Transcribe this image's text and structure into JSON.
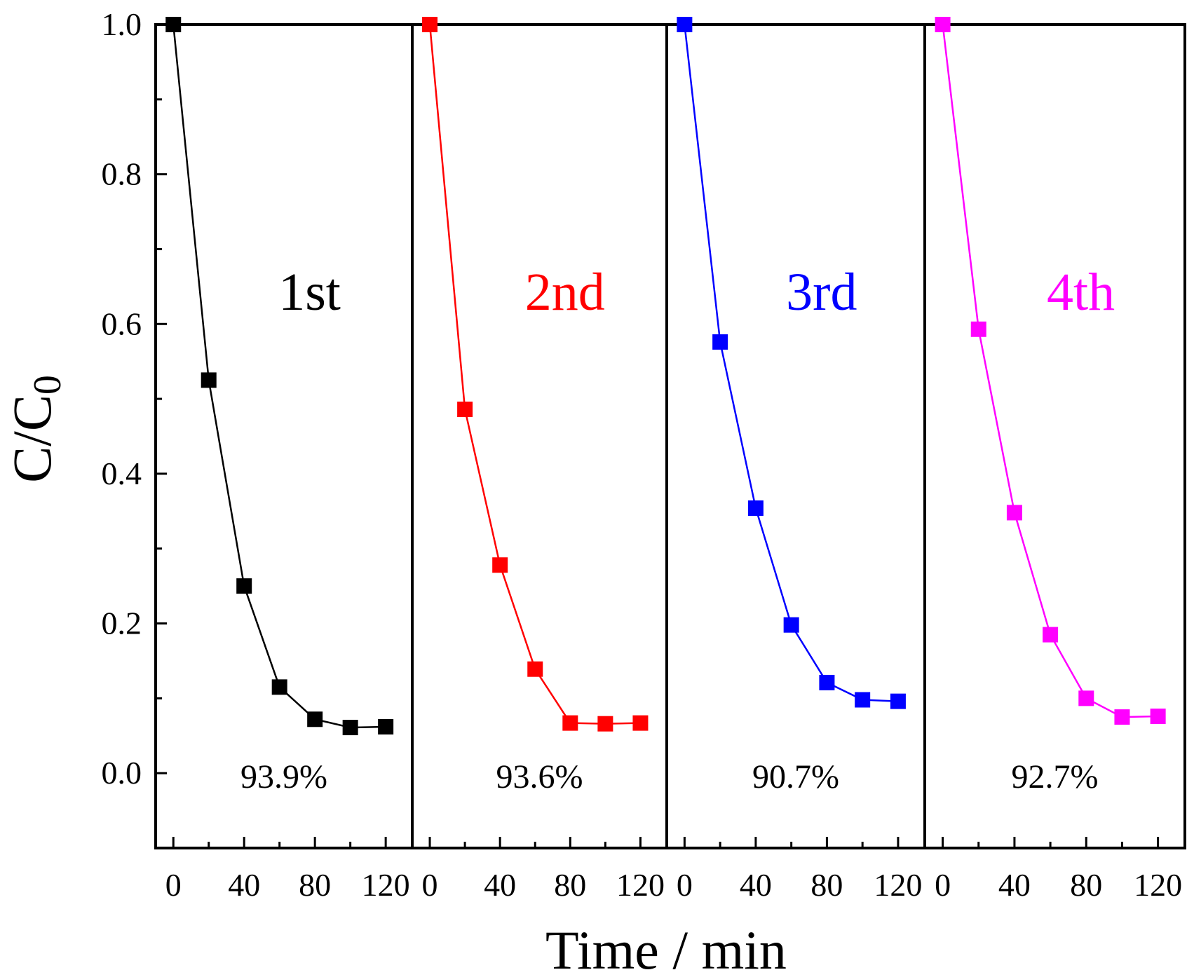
{
  "chart_data": {
    "type": "line",
    "ylabel_main": "C/C",
    "ylabel_sub": "0",
    "xlabel": "Time / min",
    "ylim": [
      -0.1,
      1.0
    ],
    "yticks": [
      "0.0",
      "0.2",
      "0.4",
      "0.6",
      "0.8",
      "1.0"
    ],
    "xlim": [
      -10,
      135
    ],
    "xticks": [
      "0",
      "40",
      "80",
      "120"
    ],
    "x": [
      0,
      20,
      40,
      60,
      80,
      100,
      120
    ],
    "series": [
      {
        "name": "1st",
        "color": "#000000",
        "removal": "93.9%",
        "values": [
          1.0,
          0.525,
          0.25,
          0.115,
          0.072,
          0.061,
          0.062
        ]
      },
      {
        "name": "2nd",
        "color": "#ff0000",
        "removal": "93.6%",
        "values": [
          1.0,
          0.486,
          0.278,
          0.139,
          0.067,
          0.066,
          0.067
        ]
      },
      {
        "name": "3rd",
        "color": "#0000ff",
        "removal": "90.7%",
        "values": [
          1.0,
          0.576,
          0.354,
          0.198,
          0.121,
          0.098,
          0.096
        ]
      },
      {
        "name": "4th",
        "color": "#ff00ff",
        "removal": "92.7%",
        "values": [
          1.0,
          0.593,
          0.348,
          0.185,
          0.1,
          0.075,
          0.076
        ]
      }
    ]
  }
}
